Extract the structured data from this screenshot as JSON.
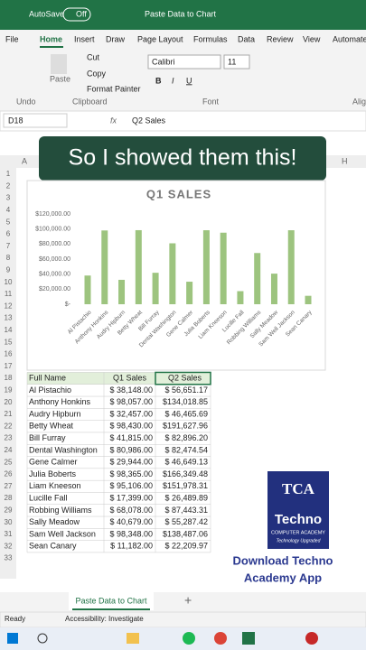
{
  "titlebar": {
    "autosave": "AutoSave",
    "toggle": "Off",
    "file": "Paste Data to Chart"
  },
  "tabs": [
    "File",
    "Home",
    "Insert",
    "Draw",
    "Page Layout",
    "Formulas",
    "Data",
    "Review",
    "View",
    "Automate"
  ],
  "ribbon": {
    "paste": "Paste",
    "cut": "Cut",
    "copy": "Copy",
    "format_painter": "Format Painter",
    "font": "Calibri",
    "size": "11",
    "groups": [
      "Undo",
      "Clipboard",
      "Font",
      "Alig"
    ]
  },
  "formula_bar": {
    "name_box": "D18",
    "fx": "fx",
    "content": "Q2 Sales"
  },
  "caption": "So I showed them this!",
  "columns": [
    "A",
    "H"
  ],
  "row_numbers": [
    1,
    2,
    3,
    4,
    5,
    6,
    7,
    8,
    9,
    10,
    11,
    12,
    13,
    14,
    15,
    16,
    17,
    18,
    19,
    20,
    21,
    22,
    23,
    24,
    25,
    26,
    27,
    28,
    29,
    30,
    31,
    32,
    33
  ],
  "chart": {
    "type": "bar",
    "title": "Q1 SALES",
    "color": "#9dc47f",
    "categories": [
      "Al Pistachio",
      "Anthony Honkins",
      "Audry Hipburn",
      "Betty Wheat",
      "Bill Furray",
      "Dental Washington",
      "Gene Calmer",
      "Julia Boberts",
      "Liam Kneeson",
      "Lucille Fall",
      "Robbing Williams",
      "Sally Meadow",
      "Sam Well Jackson",
      "Sean Canary"
    ],
    "values": [
      38148,
      98057,
      32457,
      98430,
      41815,
      80986,
      29944,
      98365,
      95106,
      17399,
      68078,
      40679,
      98348,
      11182
    ],
    "ylim": [
      0,
      120000
    ],
    "yticks": [
      {
        "value": 0,
        "label": "$-"
      },
      {
        "value": 20000,
        "label": "$20,000.00"
      },
      {
        "value": 40000,
        "label": "$40,000.00"
      },
      {
        "value": 60000,
        "label": "$60,000.00"
      },
      {
        "value": 80000,
        "label": "$80,000.00"
      },
      {
        "value": 100000,
        "label": "$100,000.00"
      },
      {
        "value": 120000,
        "label": "$120,000.00"
      }
    ]
  },
  "table": {
    "header": [
      "Full Name",
      "Q1 Sales",
      "Q2 Sales"
    ],
    "rows": [
      [
        "Al Pistachio",
        "$ 38,148.00",
        "$ 56,651.17"
      ],
      [
        "Anthony Honkins",
        "$ 98,057.00",
        "$134,018.85"
      ],
      [
        "Audry Hipburn",
        "$ 32,457.00",
        "$ 46,465.69"
      ],
      [
        "Betty Wheat",
        "$ 98,430.00",
        "$191,627.96"
      ],
      [
        "Bill Furray",
        "$ 41,815.00",
        "$ 82,896.20"
      ],
      [
        "Dental Washington",
        "$ 80,986.00",
        "$ 82,474.54"
      ],
      [
        "Gene Calmer",
        "$ 29,944.00",
        "$ 46,649.13"
      ],
      [
        "Julia Boberts",
        "$ 98,365.00",
        "$166,349.48"
      ],
      [
        "Liam Kneeson",
        "$ 95,106.00",
        "$151,978.31"
      ],
      [
        "Lucille Fall",
        "$ 17,399.00",
        "$ 26,489.89"
      ],
      [
        "Robbing Williams",
        "$ 68,078.00",
        "$ 87,443.31"
      ],
      [
        "Sally Meadow",
        "$ 40,679.00",
        "$ 55,287.42"
      ],
      [
        "Sam Well Jackson",
        "$ 98,348.00",
        "$138,487.06"
      ],
      [
        "Sean Canary",
        "$ 11,182.00",
        "$ 22,209.97"
      ]
    ]
  },
  "logo": {
    "mark": "TCA",
    "name": "Techno",
    "sub": "COMPUTER ACADEMY",
    "tagline": "Technology Upgraded",
    "cta": [
      "Download Techno",
      "Academy App"
    ]
  },
  "sheet_tab": "Paste Data to Chart",
  "status": {
    "ready": "Ready",
    "accessibility": "Accessibility: Investigate"
  }
}
